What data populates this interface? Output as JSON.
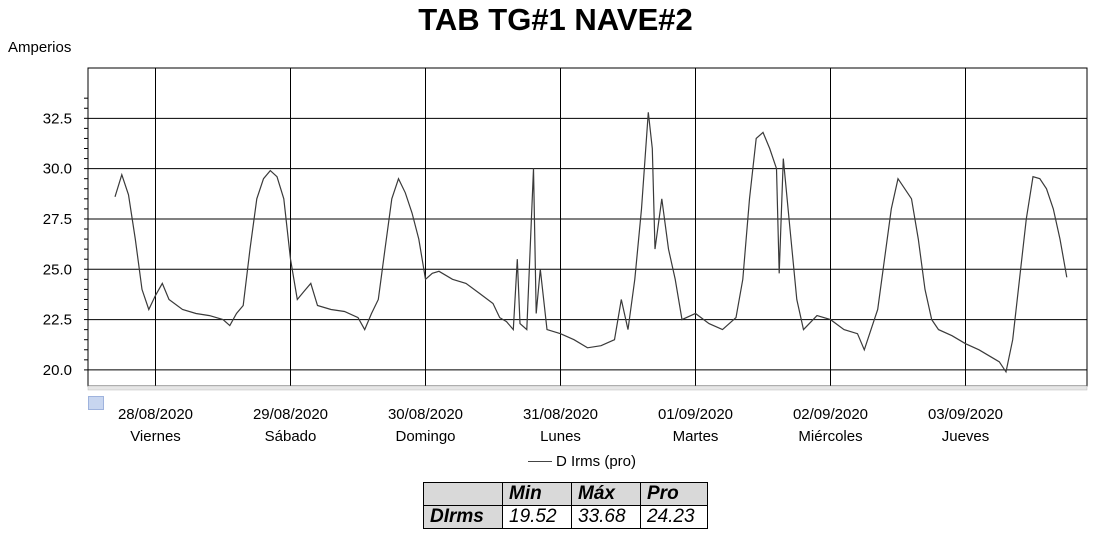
{
  "chart_data": {
    "type": "line",
    "title": "TAB TG#1 NAVE#2",
    "ylabel": "Amperios",
    "ylim": [
      19.2,
      35.0
    ],
    "yticks": [
      "20.0",
      "22.5",
      "25.0",
      "27.5",
      "30.0",
      "32.5"
    ],
    "ytick_values": [
      20.0,
      22.5,
      25.0,
      27.5,
      30.0,
      32.5
    ],
    "xlim": [
      0,
      7.4
    ],
    "xticks": [
      {
        "x": 0.5,
        "date": "28/08/2020",
        "day": "Viernes"
      },
      {
        "x": 1.5,
        "date": "29/08/2020",
        "day": "Sábado"
      },
      {
        "x": 2.5,
        "date": "30/08/2020",
        "day": "Domingo"
      },
      {
        "x": 3.5,
        "date": "31/08/2020",
        "day": "Lunes"
      },
      {
        "x": 4.5,
        "date": "01/09/2020",
        "day": "Martes"
      },
      {
        "x": 5.5,
        "date": "02/09/2020",
        "day": "Miércoles"
      },
      {
        "x": 6.5,
        "date": "03/09/2020",
        "day": "Jueves"
      }
    ],
    "grid": true,
    "legend_position": "bottom",
    "series": [
      {
        "name": "D Irms (pro)",
        "color": "#3a3a3a",
        "points": [
          [
            0.2,
            28.6
          ],
          [
            0.25,
            29.7
          ],
          [
            0.3,
            28.7
          ],
          [
            0.35,
            26.5
          ],
          [
            0.4,
            24.0
          ],
          [
            0.45,
            23.0
          ],
          [
            0.5,
            23.7
          ],
          [
            0.55,
            24.3
          ],
          [
            0.6,
            23.5
          ],
          [
            0.7,
            23.0
          ],
          [
            0.8,
            22.8
          ],
          [
            0.9,
            22.7
          ],
          [
            1.0,
            22.5
          ],
          [
            1.05,
            22.2
          ],
          [
            1.1,
            22.8
          ],
          [
            1.15,
            23.2
          ],
          [
            1.2,
            26.0
          ],
          [
            1.25,
            28.5
          ],
          [
            1.3,
            29.5
          ],
          [
            1.35,
            29.9
          ],
          [
            1.4,
            29.6
          ],
          [
            1.45,
            28.5
          ],
          [
            1.5,
            25.5
          ],
          [
            1.55,
            23.5
          ],
          [
            1.6,
            23.9
          ],
          [
            1.65,
            24.3
          ],
          [
            1.7,
            23.2
          ],
          [
            1.8,
            23.0
          ],
          [
            1.9,
            22.9
          ],
          [
            2.0,
            22.6
          ],
          [
            2.05,
            22.0
          ],
          [
            2.1,
            22.8
          ],
          [
            2.15,
            23.5
          ],
          [
            2.2,
            26.0
          ],
          [
            2.25,
            28.5
          ],
          [
            2.3,
            29.5
          ],
          [
            2.35,
            28.8
          ],
          [
            2.4,
            27.8
          ],
          [
            2.45,
            26.5
          ],
          [
            2.5,
            24.5
          ],
          [
            2.55,
            24.8
          ],
          [
            2.6,
            24.9
          ],
          [
            2.7,
            24.5
          ],
          [
            2.8,
            24.3
          ],
          [
            2.9,
            23.8
          ],
          [
            3.0,
            23.3
          ],
          [
            3.05,
            22.6
          ],
          [
            3.1,
            22.4
          ],
          [
            3.15,
            22.0
          ],
          [
            3.18,
            25.5
          ],
          [
            3.2,
            22.3
          ],
          [
            3.25,
            22.0
          ],
          [
            3.3,
            30.0
          ],
          [
            3.32,
            22.8
          ],
          [
            3.35,
            25.0
          ],
          [
            3.4,
            22.0
          ],
          [
            3.5,
            21.8
          ],
          [
            3.6,
            21.5
          ],
          [
            3.7,
            21.1
          ],
          [
            3.8,
            21.2
          ],
          [
            3.9,
            21.5
          ],
          [
            3.95,
            23.5
          ],
          [
            4.0,
            22.0
          ],
          [
            4.05,
            24.5
          ],
          [
            4.1,
            28.0
          ],
          [
            4.15,
            32.8
          ],
          [
            4.18,
            31.0
          ],
          [
            4.2,
            26.0
          ],
          [
            4.25,
            28.5
          ],
          [
            4.3,
            26.0
          ],
          [
            4.35,
            24.5
          ],
          [
            4.4,
            22.5
          ],
          [
            4.5,
            22.8
          ],
          [
            4.6,
            22.3
          ],
          [
            4.7,
            22.0
          ],
          [
            4.8,
            22.6
          ],
          [
            4.85,
            24.5
          ],
          [
            4.9,
            28.5
          ],
          [
            4.95,
            31.5
          ],
          [
            5.0,
            31.8
          ],
          [
            5.05,
            31.0
          ],
          [
            5.1,
            30.0
          ],
          [
            5.12,
            24.8
          ],
          [
            5.15,
            30.5
          ],
          [
            5.2,
            27.0
          ],
          [
            5.25,
            23.5
          ],
          [
            5.3,
            22.0
          ],
          [
            5.4,
            22.7
          ],
          [
            5.5,
            22.5
          ],
          [
            5.6,
            22.0
          ],
          [
            5.7,
            21.8
          ],
          [
            5.75,
            21.0
          ],
          [
            5.8,
            22.0
          ],
          [
            5.85,
            23.0
          ],
          [
            5.9,
            25.5
          ],
          [
            5.95,
            28.0
          ],
          [
            6.0,
            29.5
          ],
          [
            6.05,
            29.0
          ],
          [
            6.1,
            28.5
          ],
          [
            6.15,
            26.5
          ],
          [
            6.2,
            24.0
          ],
          [
            6.25,
            22.5
          ],
          [
            6.3,
            22.0
          ],
          [
            6.4,
            21.7
          ],
          [
            6.5,
            21.3
          ],
          [
            6.6,
            21.0
          ],
          [
            6.7,
            20.6
          ],
          [
            6.75,
            20.4
          ],
          [
            6.8,
            19.9
          ],
          [
            6.85,
            21.5
          ],
          [
            6.9,
            24.5
          ],
          [
            6.95,
            27.5
          ],
          [
            7.0,
            29.6
          ],
          [
            7.05,
            29.5
          ],
          [
            7.1,
            29.0
          ],
          [
            7.15,
            28.0
          ],
          [
            7.2,
            26.5
          ],
          [
            7.25,
            24.6
          ]
        ]
      }
    ]
  },
  "legend": {
    "label": "D Irms (pro)"
  },
  "stats_table": {
    "headers": [
      "Min",
      "Máx",
      "Pro"
    ],
    "row_label": "DIrms",
    "values": [
      "19.52",
      "33.68",
      "24.23"
    ]
  }
}
